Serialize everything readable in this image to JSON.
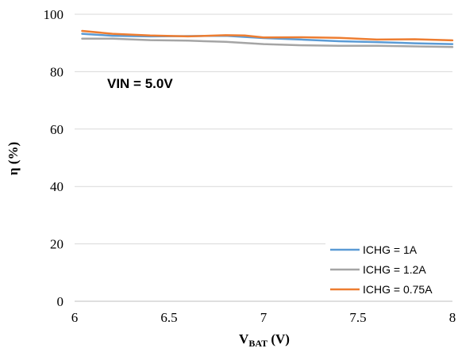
{
  "chart_data": {
    "type": "line",
    "title": "",
    "xlabel": {
      "main": "V",
      "sub": "BAT",
      "unit": " (V)"
    },
    "ylabel": "η (%)",
    "xlim": [
      6,
      8
    ],
    "ylim": [
      0,
      100
    ],
    "xticks": [
      6,
      6.5,
      7,
      7.5,
      8
    ],
    "xtick_labels": [
      "6",
      "6.5",
      "7",
      "7.5",
      "8"
    ],
    "yticks": [
      0,
      20,
      40,
      60,
      80,
      100
    ],
    "ytick_labels": [
      "0",
      "20",
      "40",
      "60",
      "80",
      "100"
    ],
    "grid": "horizontal",
    "legend_position": "bottom-right",
    "annotation": "VIN = 5.0V",
    "series": [
      {
        "name": "ICHG = 1A",
        "color": "#5b9bd5",
        "x": [
          6.04,
          6.2,
          6.4,
          6.6,
          6.8,
          7.0,
          7.2,
          7.4,
          7.6,
          7.8,
          8.0
        ],
        "y": [
          93.2,
          92.5,
          92.3,
          92.4,
          92.5,
          91.7,
          91.2,
          90.6,
          90.3,
          89.9,
          89.6
        ]
      },
      {
        "name": "ICHG = 1.2A",
        "color": "#a5a5a5",
        "x": [
          6.04,
          6.2,
          6.4,
          6.6,
          6.8,
          7.0,
          7.2,
          7.4,
          7.6,
          7.8,
          8.0
        ],
        "y": [
          91.5,
          91.5,
          91.0,
          90.8,
          90.4,
          89.6,
          89.2,
          89.0,
          89.0,
          88.8,
          88.6
        ]
      },
      {
        "name": "ICHG = 0.75A",
        "color": "#ed7d31",
        "x": [
          6.04,
          6.2,
          6.4,
          6.6,
          6.8,
          6.9,
          7.0,
          7.2,
          7.4,
          7.6,
          7.8,
          8.0
        ],
        "y": [
          94.2,
          93.2,
          92.6,
          92.3,
          92.7,
          92.6,
          91.9,
          92.0,
          91.8,
          91.2,
          91.3,
          90.9
        ]
      }
    ]
  }
}
